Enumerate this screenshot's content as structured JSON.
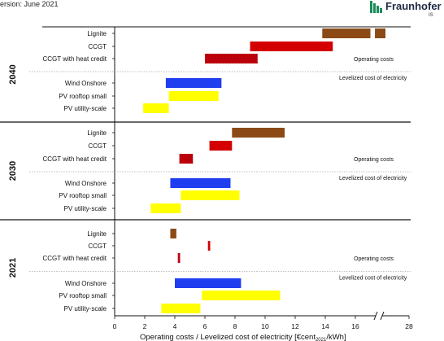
{
  "header": {
    "version": "ersion: June 2021",
    "logo_text": "Fraunhofer",
    "logo_sub": "IS"
  },
  "colors": {
    "lignite": "#8b4a16",
    "ccgt": "#d40000",
    "ccgt_heat": "#c0000c",
    "wind": "#1f3ef0",
    "pv": "#ffff00",
    "logo_green": "#1a8c5a"
  },
  "chart_data": {
    "type": "bar",
    "orientation": "horizontal-range",
    "xlabel": "Operating costs / Levelized cost of electricity [€cent",
    "xlabel_suffix": "/kWh]",
    "xlim": [
      0,
      28
    ],
    "axis_break": [
      17,
      28
    ],
    "x_ticks": [
      "0",
      "2",
      "4",
      "6",
      "8",
      "10",
      "12",
      "14",
      "16",
      "28"
    ],
    "annotation_operating": "Operating costs",
    "annotation_lcoe": "Levelized cost of electricity",
    "groups": [
      {
        "year": "2040",
        "items": [
          {
            "label": "Lignite",
            "color_key": "lignite",
            "ranges": [
              [
                13.8,
                17.0
              ],
              [
                17.3,
                18.0
              ]
            ]
          },
          {
            "label": "CCGT",
            "color_key": "ccgt",
            "ranges": [
              [
                9.0,
                14.5
              ]
            ]
          },
          {
            "label": "CCGT with heat credit",
            "color_key": "ccgt_heat",
            "ranges": [
              [
                6.0,
                9.5
              ]
            ]
          },
          {
            "label": "Wind Onshore",
            "color_key": "wind",
            "ranges": [
              [
                3.4,
                7.1
              ]
            ]
          },
          {
            "label": "PV rooftop small",
            "color_key": "pv",
            "ranges": [
              [
                3.6,
                6.9
              ]
            ]
          },
          {
            "label": "PV utility-scale",
            "color_key": "pv",
            "ranges": [
              [
                1.9,
                3.6
              ]
            ]
          }
        ]
      },
      {
        "year": "2030",
        "items": [
          {
            "label": "Lignite",
            "color_key": "lignite",
            "ranges": [
              [
                7.8,
                11.3
              ]
            ]
          },
          {
            "label": "CCGT",
            "color_key": "ccgt",
            "ranges": [
              [
                6.3,
                7.8
              ]
            ]
          },
          {
            "label": "CCGT with heat credit",
            "color_key": "ccgt_heat",
            "ranges": [
              [
                4.3,
                5.2
              ]
            ]
          },
          {
            "label": "Wind Onshore",
            "color_key": "wind",
            "ranges": [
              [
                3.7,
                7.7
              ]
            ]
          },
          {
            "label": "PV rooftop small",
            "color_key": "pv",
            "ranges": [
              [
                4.4,
                8.3
              ]
            ]
          },
          {
            "label": "PV utility-scale",
            "color_key": "pv",
            "ranges": [
              [
                2.4,
                4.4
              ]
            ]
          }
        ]
      },
      {
        "year": "2021",
        "items": [
          {
            "label": "Lignite",
            "color_key": "lignite",
            "ranges": [
              [
                3.7,
                4.1
              ]
            ]
          },
          {
            "label": "CCGT",
            "color_key": "ccgt",
            "ranges": [
              [
                6.2,
                6.35
              ]
            ]
          },
          {
            "label": "CCGT with heat credit",
            "color_key": "ccgt_heat",
            "ranges": [
              [
                4.2,
                4.35
              ]
            ]
          },
          {
            "label": "Wind Onshore",
            "color_key": "wind",
            "ranges": [
              [
                4.0,
                8.4
              ]
            ]
          },
          {
            "label": "PV rooftop small",
            "color_key": "pv",
            "ranges": [
              [
                5.8,
                11.0
              ]
            ]
          },
          {
            "label": "PV utility-scale",
            "color_key": "pv",
            "ranges": [
              [
                3.1,
                5.7
              ]
            ]
          }
        ]
      }
    ]
  }
}
